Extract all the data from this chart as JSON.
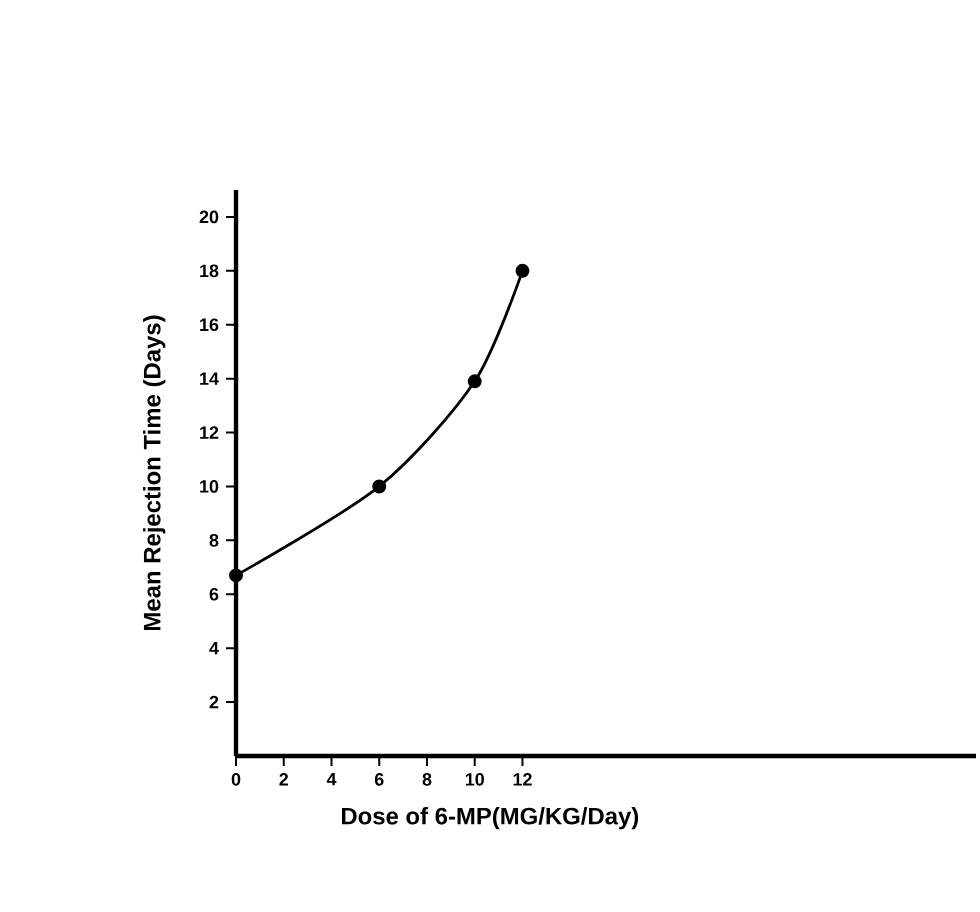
{
  "chart_data": {
    "type": "line",
    "xlabel": "Dose of 6-MP(MG/KG/Day)",
    "ylabel": "Mean Rejection Time (Days)",
    "x": [
      0,
      6,
      10,
      12
    ],
    "values": [
      6.7,
      10,
      13.9,
      18
    ],
    "color": "#000000",
    "marker": "circle",
    "line_style": "solid",
    "xlim": [
      0,
      31
    ],
    "ylim": [
      0,
      21
    ],
    "xticks": [
      0,
      2,
      4,
      6,
      8,
      10,
      12
    ],
    "yticks": [
      2,
      4,
      6,
      8,
      10,
      12,
      14,
      16,
      18,
      20
    ]
  }
}
